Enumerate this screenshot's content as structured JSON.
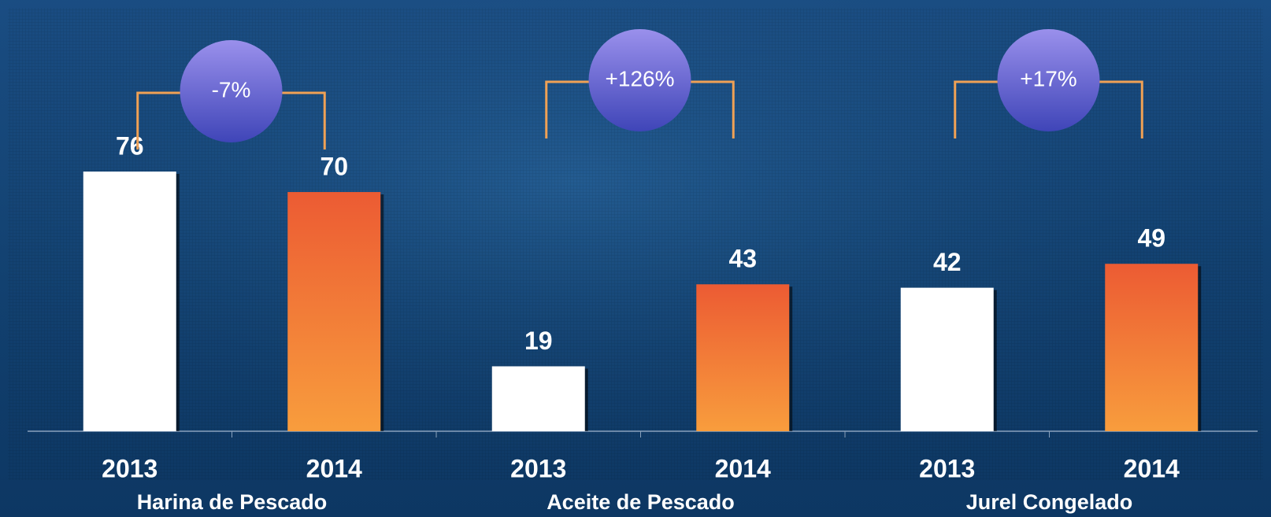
{
  "chart_data": {
    "type": "bar",
    "categories": [
      "Harina de Pescado",
      "Aceite de Pescado",
      "Jurel Congelado"
    ],
    "series": [
      {
        "name": "2013",
        "color": "#ffffff",
        "values": [
          76,
          19,
          42
        ]
      },
      {
        "name": "2014",
        "color": "#f0622f",
        "values": [
          70,
          43,
          49
        ]
      }
    ],
    "annotations": [
      "-7%",
      "+126%",
      "+17%"
    ]
  }
}
